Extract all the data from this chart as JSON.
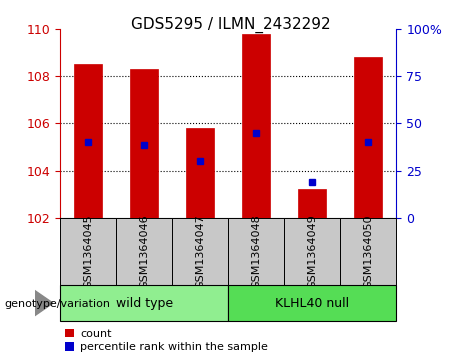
{
  "title": "GDS5295 / ILMN_2432292",
  "samples": [
    "GSM1364045",
    "GSM1364046",
    "GSM1364047",
    "GSM1364048",
    "GSM1364049",
    "GSM1364050"
  ],
  "bar_base": 102,
  "bar_tops": [
    108.5,
    108.3,
    105.8,
    109.8,
    103.2,
    108.8
  ],
  "percentile_values": [
    105.2,
    105.1,
    104.4,
    105.6,
    103.5,
    105.2
  ],
  "ylim": [
    102,
    110
  ],
  "yticks_left": [
    102,
    104,
    106,
    108,
    110
  ],
  "yticks_right": [
    0,
    25,
    50,
    75,
    100
  ],
  "bar_color": "#cc0000",
  "percentile_color": "#0000cc",
  "groups": [
    {
      "label": "wild type",
      "indices": [
        0,
        1,
        2
      ],
      "color": "#90ee90"
    },
    {
      "label": "KLHL40 null",
      "indices": [
        3,
        4,
        5
      ],
      "color": "#55dd55"
    }
  ],
  "background_color": "#ffffff",
  "bar_width": 0.5,
  "tick_label_color_left": "#cc0000",
  "tick_label_color_right": "#0000cc",
  "title_fontsize": 11,
  "tick_fontsize": 9,
  "sample_fontsize": 8,
  "group_fontsize": 9,
  "genotype_label": "genotype/variation",
  "legend_count": "count",
  "legend_percentile": "percentile rank within the sample",
  "sample_box_color": "#c8c8c8",
  "grid_yticks": [
    104,
    106,
    108
  ],
  "right_pct_label": "100%"
}
